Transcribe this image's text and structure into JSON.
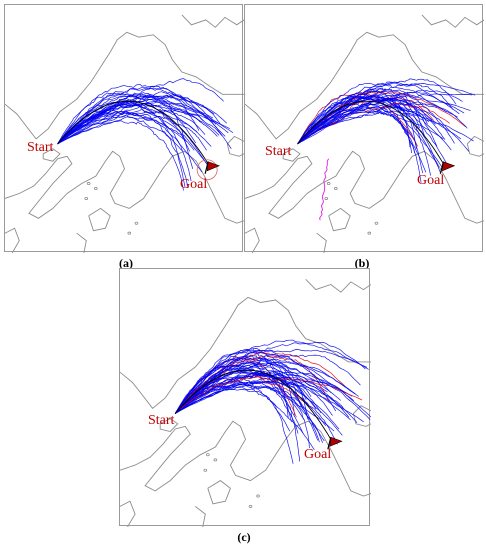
{
  "panels": [
    {
      "caption": "(a)",
      "start_label": "Start",
      "goal_label": "Goal",
      "trajectory_colors": [
        "#0000ee"
      ],
      "alt_path": "none",
      "goal_circle": true
    },
    {
      "caption": "(b)",
      "start_label": "Start",
      "goal_label": "Goal",
      "trajectory_colors": [
        "#0000ee",
        "#e00000"
      ],
      "alt_path": "#e020e0",
      "goal_circle": false
    },
    {
      "caption": "(c)",
      "start_label": "Start",
      "goal_label": "Goal",
      "trajectory_colors": [
        "#0000ee",
        "#e00000"
      ],
      "alt_path": "none",
      "goal_circle": false
    }
  ],
  "colors": {
    "coastline": "#8c8c8c",
    "label": "#c00000",
    "flag": "#b00000",
    "optimal_path": "#000000",
    "goal_circle": "#e06060"
  },
  "icons": {
    "goal_marker": "flag-icon"
  }
}
